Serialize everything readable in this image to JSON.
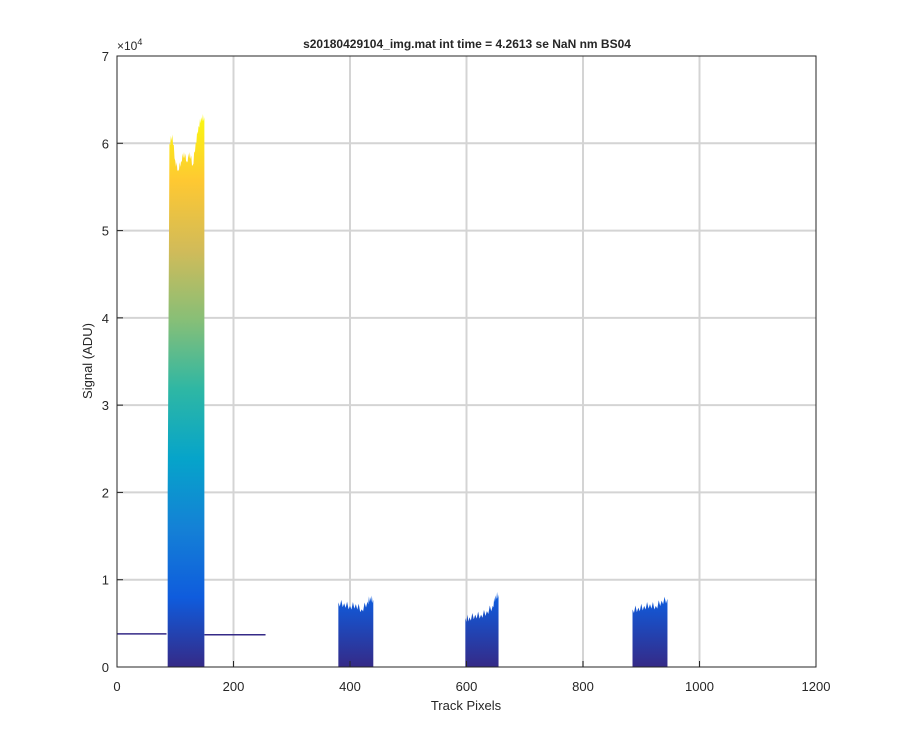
{
  "chart_data": {
    "type": "area",
    "title": "s20180429104_img.mat int time = 4.2613 se  NaN nm BS04",
    "xlabel": "Track Pixels",
    "ylabel": "Signal (ADU)",
    "y_exponent_label": "×10",
    "y_exponent_power": "4",
    "xlim": [
      0,
      1200
    ],
    "ylim": [
      0,
      70000
    ],
    "x_ticks": [
      "0",
      "200",
      "400",
      "600",
      "800",
      "1000",
      "1200"
    ],
    "y_ticks": [
      "0",
      "1",
      "2",
      "3",
      "4",
      "5",
      "6",
      "7"
    ],
    "grid": true,
    "colormap": "parula",
    "colormap_stops": [
      "#352a87",
      "#0f5cdd",
      "#1481d6",
      "#06a4ca",
      "#2eb7a4",
      "#87bf77",
      "#d1bb59",
      "#fec832",
      "#f9fb0e"
    ],
    "baseline_segments": [
      {
        "x_start": 0,
        "x_end": 85,
        "value": 3800
      },
      {
        "x_start": 150,
        "x_end": 255,
        "value": 3700
      }
    ],
    "peaks": [
      {
        "x": [
          87,
          90,
          95,
          100,
          105,
          110,
          115,
          120,
          125,
          130,
          135,
          140,
          145,
          150
        ],
        "y": [
          20000,
          60000,
          61000,
          58000,
          57000,
          58000,
          59000,
          58000,
          59000,
          57500,
          60000,
          62000,
          63000,
          63000
        ]
      },
      {
        "x": [
          380,
          390,
          400,
          410,
          420,
          430,
          435,
          440
        ],
        "y": [
          7400,
          7300,
          7000,
          7200,
          6600,
          7500,
          8000,
          7700
        ]
      },
      {
        "x": [
          598,
          605,
          615,
          625,
          635,
          645,
          650,
          655
        ],
        "y": [
          5600,
          5700,
          6000,
          6000,
          6400,
          7000,
          8200,
          8300
        ]
      },
      {
        "x": [
          885,
          895,
          905,
          915,
          925,
          935,
          945
        ],
        "y": [
          6600,
          6800,
          7000,
          7200,
          7000,
          7600,
          7800
        ]
      }
    ]
  }
}
